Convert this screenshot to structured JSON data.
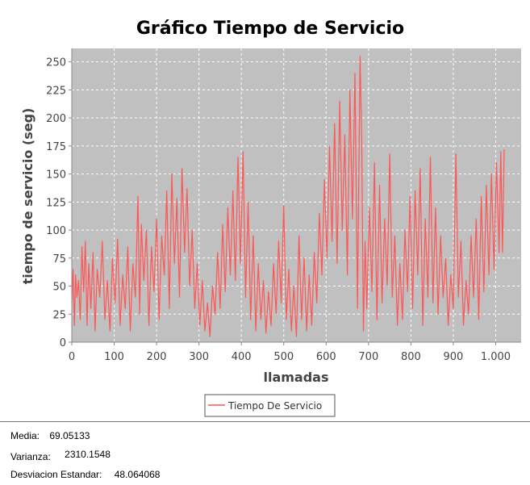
{
  "chart_data": {
    "type": "line",
    "title": "Gráfico Tiempo de Servicio",
    "xlabel": "llamadas",
    "ylabel": "tiempo de servicio (seg)",
    "xlim": [
      0,
      1060
    ],
    "ylim": [
      0,
      262
    ],
    "x_ticks": [
      {
        "value": 0,
        "label": "0"
      },
      {
        "value": 100,
        "label": "100"
      },
      {
        "value": 200,
        "label": "200"
      },
      {
        "value": 300,
        "label": "300"
      },
      {
        "value": 400,
        "label": "400"
      },
      {
        "value": 500,
        "label": "500"
      },
      {
        "value": 600,
        "label": "600"
      },
      {
        "value": 700,
        "label": "700"
      },
      {
        "value": 800,
        "label": "800"
      },
      {
        "value": 900,
        "label": "900"
      },
      {
        "value": 1000,
        "label": "1.000"
      }
    ],
    "y_ticks": [
      {
        "value": 0,
        "label": "0"
      },
      {
        "value": 25,
        "label": "25"
      },
      {
        "value": 50,
        "label": "50"
      },
      {
        "value": 75,
        "label": "75"
      },
      {
        "value": 100,
        "label": "100"
      },
      {
        "value": 125,
        "label": "125"
      },
      {
        "value": 150,
        "label": "150"
      },
      {
        "value": 175,
        "label": "175"
      },
      {
        "value": 200,
        "label": "200"
      },
      {
        "value": 225,
        "label": "225"
      },
      {
        "value": 250,
        "label": "250"
      }
    ],
    "grid": true,
    "legend_position": "bottom",
    "background_color": "#c0c0c0",
    "series": [
      {
        "name": "Tiempo De Servicio",
        "color": "#ff5555",
        "points": [
          [
            0,
            35
          ],
          [
            3,
            65
          ],
          [
            6,
            15
          ],
          [
            9,
            60
          ],
          [
            12,
            40
          ],
          [
            16,
            55
          ],
          [
            20,
            20
          ],
          [
            24,
            85
          ],
          [
            28,
            45
          ],
          [
            32,
            90
          ],
          [
            36,
            15
          ],
          [
            40,
            70
          ],
          [
            45,
            30
          ],
          [
            50,
            80
          ],
          [
            55,
            10
          ],
          [
            60,
            65
          ],
          [
            66,
            40
          ],
          [
            72,
            90
          ],
          [
            78,
            20
          ],
          [
            84,
            55
          ],
          [
            90,
            10
          ],
          [
            96,
            75
          ],
          [
            102,
            35
          ],
          [
            108,
            92
          ],
          [
            114,
            15
          ],
          [
            120,
            60
          ],
          [
            126,
            30
          ],
          [
            132,
            85
          ],
          [
            138,
            10
          ],
          [
            144,
            70
          ],
          [
            150,
            40
          ],
          [
            156,
            130
          ],
          [
            160,
            25
          ],
          [
            164,
            105
          ],
          [
            170,
            55
          ],
          [
            176,
            100
          ],
          [
            182,
            15
          ],
          [
            188,
            85
          ],
          [
            194,
            45
          ],
          [
            200,
            110
          ],
          [
            206,
            20
          ],
          [
            212,
            95
          ],
          [
            218,
            60
          ],
          [
            224,
            135
          ],
          [
            230,
            30
          ],
          [
            236,
            150
          ],
          [
            242,
            70
          ],
          [
            248,
            128
          ],
          [
            254,
            40
          ],
          [
            260,
            155
          ],
          [
            266,
            80
          ],
          [
            272,
            137
          ],
          [
            278,
            50
          ],
          [
            284,
            100
          ],
          [
            290,
            30
          ],
          [
            296,
            70
          ],
          [
            302,
            15
          ],
          [
            308,
            55
          ],
          [
            314,
            10
          ],
          [
            320,
            35
          ],
          [
            326,
            5
          ],
          [
            332,
            50
          ],
          [
            338,
            25
          ],
          [
            344,
            80
          ],
          [
            350,
            30
          ],
          [
            356,
            105
          ],
          [
            362,
            45
          ],
          [
            368,
            120
          ],
          [
            374,
            60
          ],
          [
            380,
            135
          ],
          [
            386,
            55
          ],
          [
            392,
            165
          ],
          [
            398,
            70
          ],
          [
            404,
            170
          ],
          [
            410,
            40
          ],
          [
            416,
            125
          ],
          [
            422,
            20
          ],
          [
            428,
            95
          ],
          [
            434,
            10
          ],
          [
            440,
            70
          ],
          [
            446,
            20
          ],
          [
            452,
            55
          ],
          [
            458,
            8
          ],
          [
            464,
            45
          ],
          [
            470,
            15
          ],
          [
            476,
            70
          ],
          [
            482,
            25
          ],
          [
            488,
            90
          ],
          [
            494,
            35
          ],
          [
            500,
            122
          ],
          [
            506,
            20
          ],
          [
            512,
            65
          ],
          [
            518,
            10
          ],
          [
            524,
            50
          ],
          [
            530,
            5
          ],
          [
            536,
            95
          ],
          [
            542,
            20
          ],
          [
            548,
            75
          ],
          [
            554,
            10
          ],
          [
            560,
            60
          ],
          [
            566,
            15
          ],
          [
            572,
            80
          ],
          [
            578,
            35
          ],
          [
            584,
            115
          ],
          [
            590,
            60
          ],
          [
            596,
            145
          ],
          [
            602,
            75
          ],
          [
            608,
            175
          ],
          [
            614,
            90
          ],
          [
            620,
            195
          ],
          [
            626,
            70
          ],
          [
            632,
            215
          ],
          [
            638,
            100
          ],
          [
            644,
            185
          ],
          [
            650,
            60
          ],
          [
            656,
            225
          ],
          [
            662,
            110
          ],
          [
            668,
            240
          ],
          [
            674,
            30
          ],
          [
            680,
            255
          ],
          [
            684,
            180
          ],
          [
            688,
            10
          ],
          [
            692,
            90
          ],
          [
            696,
            30
          ],
          [
            702,
            120
          ],
          [
            708,
            45
          ],
          [
            714,
            160
          ],
          [
            720,
            20
          ],
          [
            726,
            140
          ],
          [
            732,
            35
          ],
          [
            738,
            110
          ],
          [
            744,
            50
          ],
          [
            750,
            168
          ],
          [
            756,
            40
          ],
          [
            762,
            95
          ],
          [
            768,
            15
          ],
          [
            774,
            70
          ],
          [
            780,
            20
          ],
          [
            786,
            100
          ],
          [
            792,
            45
          ],
          [
            798,
            130
          ],
          [
            804,
            30
          ],
          [
            810,
            135
          ],
          [
            816,
            60
          ],
          [
            822,
            155
          ],
          [
            828,
            15
          ],
          [
            834,
            110
          ],
          [
            840,
            40
          ],
          [
            846,
            165
          ],
          [
            852,
            35
          ],
          [
            858,
            120
          ],
          [
            864,
            25
          ],
          [
            870,
            95
          ],
          [
            876,
            40
          ],
          [
            882,
            75
          ],
          [
            888,
            15
          ],
          [
            894,
            60
          ],
          [
            900,
            30
          ],
          [
            906,
            168
          ],
          [
            912,
            40
          ],
          [
            918,
            90
          ],
          [
            924,
            15
          ],
          [
            930,
            55
          ],
          [
            936,
            25
          ],
          [
            942,
            95
          ],
          [
            948,
            40
          ],
          [
            954,
            110
          ],
          [
            960,
            20
          ],
          [
            966,
            130
          ],
          [
            972,
            45
          ],
          [
            978,
            140
          ],
          [
            984,
            60
          ],
          [
            990,
            150
          ],
          [
            996,
            65
          ],
          [
            1002,
            160
          ],
          [
            1008,
            80
          ],
          [
            1012,
            170
          ],
          [
            1016,
            80
          ],
          [
            1020,
            172
          ]
        ]
      }
    ]
  },
  "stats": {
    "media_label": "Media:",
    "media_value": "69.05133",
    "varianza_label": "Varianza:",
    "varianza_value": "2310.1548",
    "desviacion_label": "Desviacion Estandar:",
    "desviacion_value": "48.064068"
  }
}
